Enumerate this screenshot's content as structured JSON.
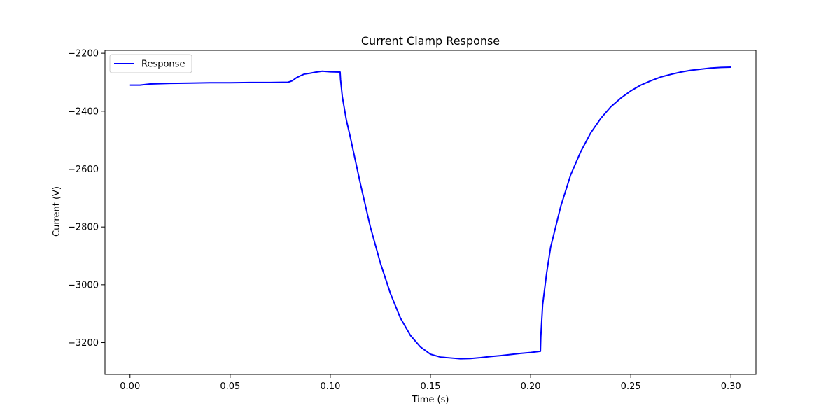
{
  "chart_data": {
    "type": "line",
    "title": "Current Clamp Response",
    "xlabel": "Time (s)",
    "ylabel": "Current (V)",
    "xlim": [
      -0.0125,
      0.3125
    ],
    "ylim": [
      -3310,
      -2190
    ],
    "xticks": [
      0.0,
      0.05,
      0.1,
      0.15,
      0.2,
      0.25,
      0.3
    ],
    "xtick_labels": [
      "0.00",
      "0.05",
      "0.10",
      "0.15",
      "0.20",
      "0.25",
      "0.30"
    ],
    "yticks": [
      -3200,
      -3000,
      -2800,
      -2600,
      -2400,
      -2200
    ],
    "ytick_labels": [
      "−3200",
      "−3000",
      "−2800",
      "−2600",
      "−2400",
      "−2200"
    ],
    "grid": false,
    "legend_position": "upper left",
    "series": [
      {
        "name": "Response",
        "color": "#0000ff",
        "x": [
          0.0,
          0.005,
          0.01,
          0.02,
          0.03,
          0.04,
          0.05,
          0.06,
          0.07,
          0.079,
          0.081,
          0.083,
          0.085,
          0.087,
          0.09,
          0.093,
          0.096,
          0.1,
          0.1049,
          0.1051,
          0.106,
          0.108,
          0.11,
          0.115,
          0.12,
          0.125,
          0.13,
          0.135,
          0.14,
          0.145,
          0.15,
          0.155,
          0.16,
          0.165,
          0.17,
          0.175,
          0.18,
          0.185,
          0.19,
          0.195,
          0.2,
          0.2049,
          0.2051,
          0.206,
          0.208,
          0.21,
          0.215,
          0.22,
          0.225,
          0.23,
          0.235,
          0.24,
          0.245,
          0.25,
          0.255,
          0.26,
          0.265,
          0.27,
          0.275,
          0.28,
          0.285,
          0.29,
          0.295,
          0.3
        ],
        "y": [
          -2310,
          -2310,
          -2306,
          -2304,
          -2303,
          -2302,
          -2302,
          -2301,
          -2301,
          -2300,
          -2295,
          -2285,
          -2278,
          -2272,
          -2269,
          -2265,
          -2262,
          -2264,
          -2265,
          -2290,
          -2350,
          -2430,
          -2490,
          -2650,
          -2800,
          -2925,
          -3030,
          -3115,
          -3175,
          -3215,
          -3240,
          -3250,
          -3253,
          -3256,
          -3255,
          -3252,
          -3248,
          -3245,
          -3241,
          -3237,
          -3234,
          -3230,
          -3180,
          -3070,
          -2960,
          -2870,
          -2730,
          -2620,
          -2540,
          -2475,
          -2425,
          -2385,
          -2355,
          -2330,
          -2310,
          -2295,
          -2282,
          -2273,
          -2265,
          -2259,
          -2255,
          -2251,
          -2249,
          -2248
        ]
      }
    ]
  }
}
